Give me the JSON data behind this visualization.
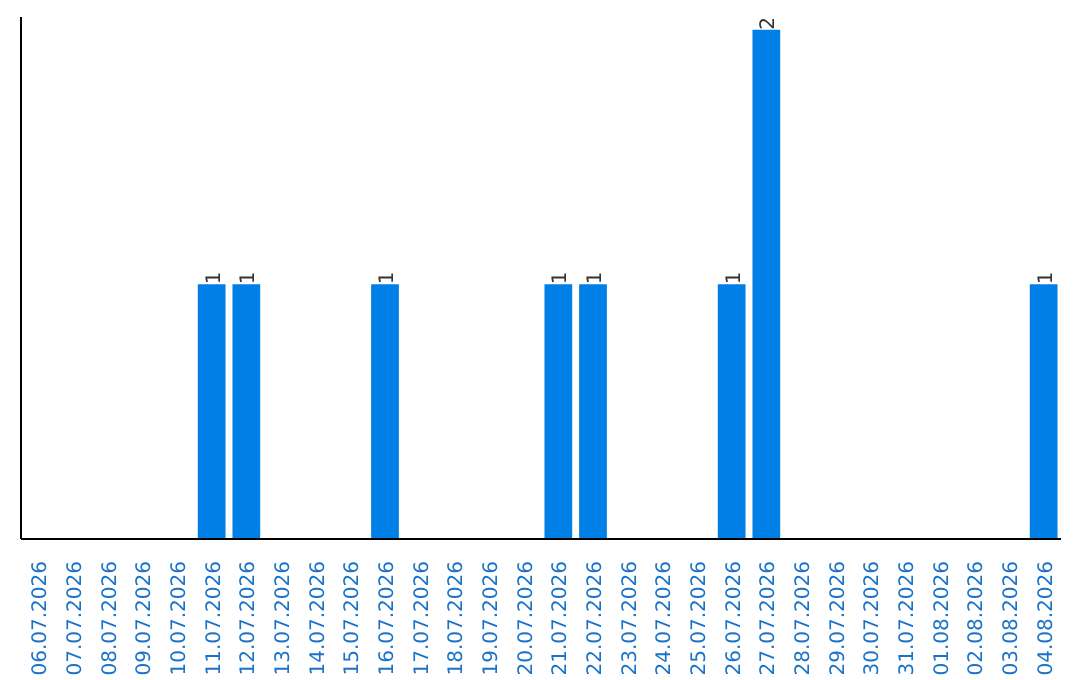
{
  "chart_data": {
    "type": "bar",
    "categories": [
      "06.07.2026",
      "07.07.2026",
      "08.07.2026",
      "09.07.2026",
      "10.07.2026",
      "11.07.2026",
      "12.07.2026",
      "13.07.2026",
      "14.07.2026",
      "15.07.2026",
      "16.07.2026",
      "17.07.2026",
      "18.07.2026",
      "19.07.2026",
      "20.07.2026",
      "21.07.2026",
      "22.07.2026",
      "23.07.2026",
      "24.07.2026",
      "25.07.2026",
      "26.07.2026",
      "27.07.2026",
      "28.07.2026",
      "29.07.2026",
      "30.07.2026",
      "31.07.2026",
      "01.08.2026",
      "02.08.2026",
      "03.08.2026",
      "04.08.2026"
    ],
    "values": [
      0,
      0,
      0,
      0,
      0,
      1,
      1,
      0,
      0,
      0,
      1,
      0,
      0,
      0,
      0,
      1,
      1,
      0,
      0,
      0,
      1,
      2,
      0,
      0,
      0,
      0,
      0,
      0,
      0,
      1
    ],
    "value_labels": [
      null,
      null,
      null,
      null,
      null,
      "1",
      "1",
      null,
      null,
      null,
      "1",
      null,
      null,
      null,
      null,
      "1",
      "1",
      null,
      null,
      null,
      "1",
      "2",
      null,
      null,
      null,
      null,
      null,
      null,
      null,
      "1"
    ],
    "color": "#0080e6",
    "ylim": [
      0,
      2.05
    ],
    "tick_labels": "x",
    "grid": false
  }
}
